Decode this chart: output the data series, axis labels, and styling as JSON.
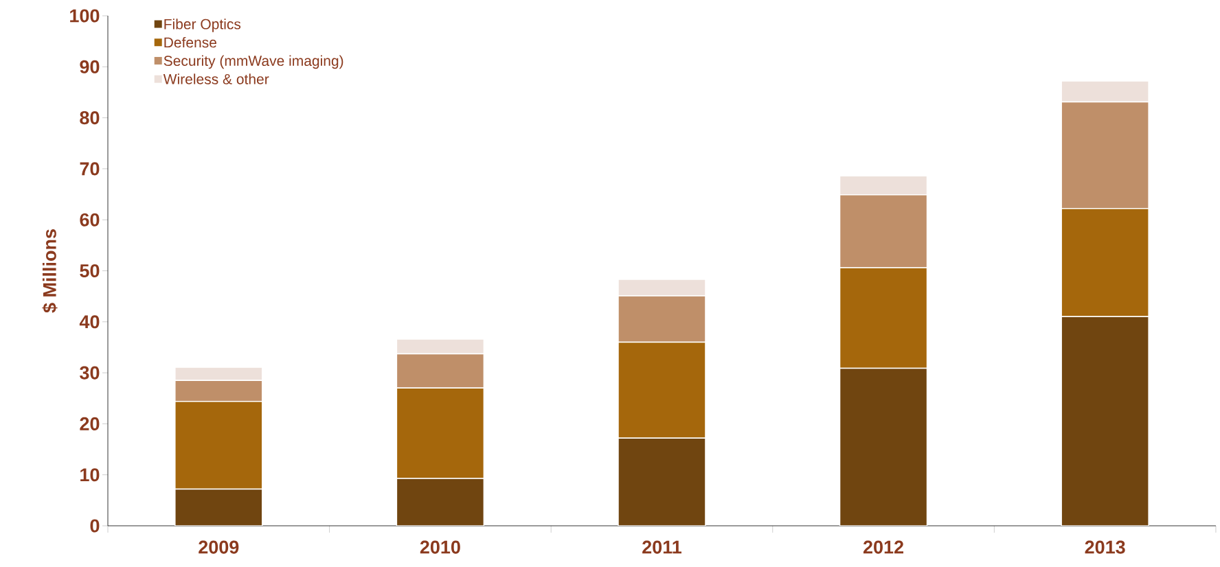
{
  "chart_data": {
    "type": "bar",
    "stacked": true,
    "ylabel": "$ Millions",
    "categories": [
      "2009",
      "2010",
      "2011",
      "2012",
      "2013"
    ],
    "series": [
      {
        "name": "Fiber Optics",
        "color": "#704510",
        "values": [
          7.2,
          9.3,
          17.2,
          30.9,
          41.0
        ]
      },
      {
        "name": "Defense",
        "color": "#a5670c",
        "values": [
          17.2,
          17.7,
          18.8,
          19.7,
          21.2
        ]
      },
      {
        "name": "Security (mmWave imaging)",
        "color": "#bf8f69",
        "values": [
          4.1,
          6.7,
          9.1,
          14.3,
          20.9
        ]
      },
      {
        "name": "Wireless & other",
        "color": "#ede0da",
        "values": [
          2.6,
          2.9,
          3.2,
          3.7,
          4.1
        ]
      }
    ],
    "ylim": [
      0,
      100
    ],
    "yticks": [
      0,
      10,
      20,
      30,
      40,
      50,
      60,
      70,
      80,
      90,
      100
    ],
    "legend": "top left",
    "grid": false
  }
}
